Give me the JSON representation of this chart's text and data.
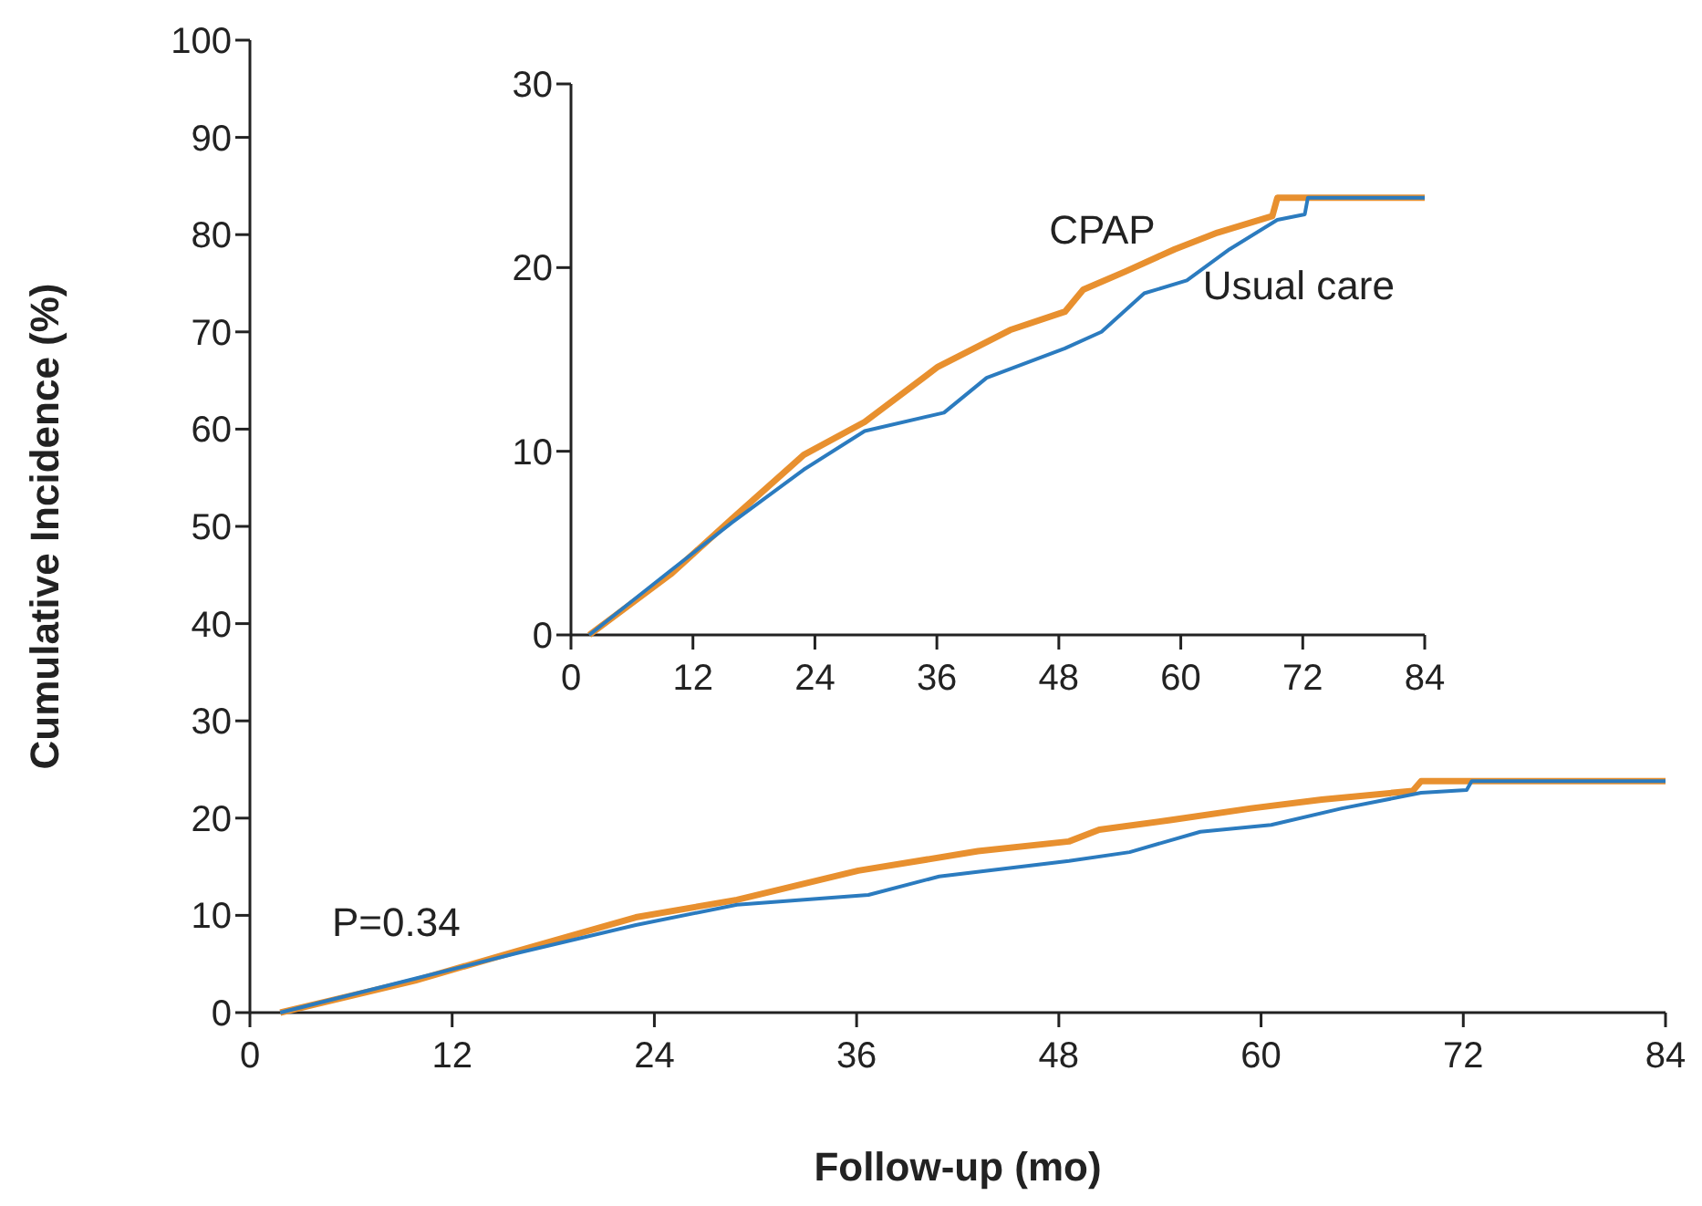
{
  "chart_data": [
    {
      "type": "line",
      "xlabel": "Follow-up (mo)",
      "ylabel": "Cumulative Incidence (%)",
      "annotations": [
        "P=0.34"
      ],
      "xlim": [
        0,
        84
      ],
      "ylim": [
        0,
        100
      ],
      "xticks": [
        0,
        12,
        24,
        36,
        48,
        60,
        72,
        84
      ],
      "yticks": [
        0,
        10,
        20,
        30,
        40,
        50,
        60,
        70,
        80,
        90,
        100
      ],
      "grid": false,
      "series": [
        {
          "color": "#e8902f",
          "x": [
            1.8,
            9.8,
            15.8,
            22.9,
            28.9,
            36.1,
            43.2,
            48.6,
            50.4,
            54.6,
            59.4,
            63.6,
            69,
            69.5,
            84
          ],
          "values": [
            0,
            3.3,
            6.3,
            9.8,
            11.6,
            14.6,
            16.6,
            17.6,
            18.8,
            19.8,
            21.0,
            21.9,
            22.8,
            23.8,
            23.8
          ]
        },
        {
          "color": "#2b7bbf",
          "x": [
            1.8,
            9.8,
            15.8,
            22.9,
            28.9,
            36.7,
            40.9,
            48.6,
            52.2,
            56.4,
            60.6,
            64.8,
            69.5,
            72.2,
            72.5,
            84
          ],
          "values": [
            0,
            3.5,
            6.1,
            9.0,
            11.1,
            12.1,
            14.0,
            15.6,
            16.5,
            18.6,
            19.3,
            21.0,
            22.6,
            22.9,
            23.8,
            23.8
          ]
        }
      ]
    },
    {
      "type": "line",
      "xlim": [
        0,
        84
      ],
      "ylim": [
        0,
        30
      ],
      "xticks": [
        0,
        12,
        24,
        36,
        48,
        60,
        72,
        84
      ],
      "yticks": [
        0,
        10,
        20,
        30
      ],
      "grid": false,
      "series": [
        {
          "name": "CPAP",
          "color": "#e8902f",
          "x": [
            1.8,
            9.8,
            15.8,
            22.9,
            28.9,
            36.1,
            43.2,
            48.6,
            50.4,
            54.6,
            59.4,
            63.6,
            69,
            69.5,
            84
          ],
          "values": [
            0,
            3.3,
            6.3,
            9.8,
            11.6,
            14.6,
            16.6,
            17.6,
            18.8,
            19.8,
            21.0,
            21.9,
            22.8,
            23.8,
            23.8
          ]
        },
        {
          "name": "Usual care",
          "color": "#2b7bbf",
          "x": [
            1.8,
            9.8,
            15.8,
            22.9,
            28.9,
            36.7,
            40.9,
            48.6,
            52.2,
            56.4,
            60.6,
            64.8,
            69.5,
            72.2,
            72.5,
            84
          ],
          "values": [
            0,
            3.5,
            6.1,
            9.0,
            11.1,
            12.1,
            14.0,
            15.6,
            16.5,
            18.6,
            19.3,
            21.0,
            22.6,
            22.9,
            23.8,
            23.8
          ]
        }
      ]
    }
  ]
}
